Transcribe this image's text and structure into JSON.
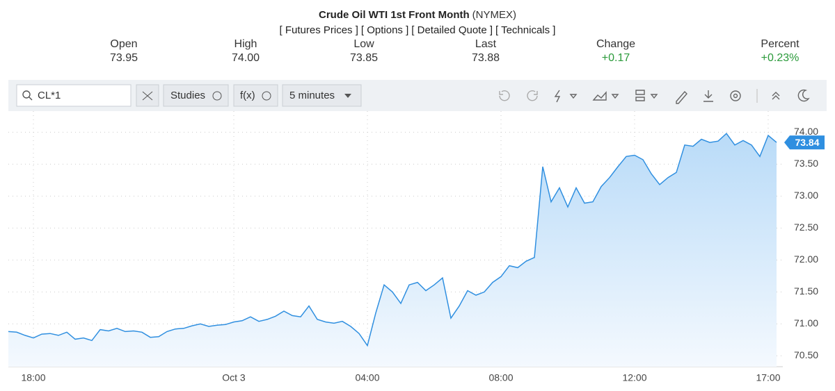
{
  "header": {
    "title": "Crude Oil WTI 1st Front Month",
    "exchange": "(NYMEX)",
    "links": [
      "[ Futures Prices ]",
      "[ Options ]",
      "[ Detailed Quote ]",
      "[ Technicals ]"
    ],
    "stats": [
      {
        "label": "Open",
        "value": "73.95"
      },
      {
        "label": "High",
        "value": "74.00"
      },
      {
        "label": "Low",
        "value": "73.85"
      },
      {
        "label": "Last",
        "value": "73.88"
      },
      {
        "label": "Change",
        "value": "+0.17"
      },
      {
        "label": "Percent",
        "value": "+0.23%"
      }
    ]
  },
  "toolbar": {
    "symbol": "CL*1",
    "studies": "Studies",
    "fx": "f(x)",
    "interval": "5 minutes"
  },
  "chart_data": {
    "type": "line",
    "categories": [
      null,
      null,
      null,
      "18:00",
      null,
      null,
      null,
      null,
      null,
      null,
      null,
      null,
      null,
      null,
      null,
      null,
      null,
      null,
      null,
      null,
      null,
      null,
      null,
      null,
      null,
      null,
      null,
      "Oct 3",
      null,
      null,
      null,
      null,
      null,
      null,
      null,
      null,
      null,
      null,
      null,
      null,
      null,
      null,
      null,
      "04:00",
      null,
      null,
      null,
      null,
      null,
      null,
      null,
      null,
      null,
      null,
      null,
      null,
      null,
      null,
      null,
      "08:00",
      null,
      null,
      null,
      null,
      null,
      null,
      null,
      null,
      null,
      null,
      null,
      null,
      null,
      null,
      null,
      "12:00",
      null,
      null,
      null,
      null,
      null,
      null,
      null,
      null,
      null,
      null,
      null,
      null,
      null,
      null,
      null,
      "17:00",
      null
    ],
    "series": [
      {
        "name": "CL*1",
        "color": "#2f8fe0",
        "values": [
          70.88,
          70.87,
          70.82,
          70.78,
          70.84,
          70.85,
          70.82,
          70.87,
          70.76,
          70.78,
          70.74,
          70.91,
          70.89,
          70.93,
          70.88,
          70.89,
          70.87,
          70.79,
          70.8,
          70.88,
          70.92,
          70.93,
          70.97,
          71.0,
          70.96,
          70.98,
          70.99,
          71.03,
          71.05,
          71.11,
          71.04,
          71.07,
          71.12,
          71.2,
          71.13,
          71.11,
          71.28,
          71.07,
          71.03,
          71.01,
          71.04,
          70.96,
          70.85,
          70.66,
          71.17,
          71.61,
          71.5,
          71.32,
          71.61,
          71.65,
          71.52,
          71.61,
          71.72,
          71.09,
          71.28,
          71.52,
          71.45,
          71.5,
          71.65,
          71.74,
          71.91,
          71.88,
          71.98,
          72.04,
          73.46,
          72.91,
          73.13,
          72.83,
          73.13,
          72.89,
          72.91,
          73.15,
          73.29,
          73.46,
          73.62,
          73.64,
          73.57,
          73.35,
          73.18,
          73.29,
          73.37,
          73.8,
          73.78,
          73.89,
          73.84,
          73.86,
          73.98,
          73.8,
          73.87,
          73.8,
          73.62,
          73.95,
          73.84
        ]
      }
    ],
    "ylim": [
      70.33,
      74.33
    ],
    "yticks": [
      {
        "value": 70.5,
        "label": "70.50"
      },
      {
        "value": 71,
        "label": "71.00"
      },
      {
        "value": 71.5,
        "label": "71.50"
      },
      {
        "value": 72,
        "label": "72.00"
      },
      {
        "value": 72.5,
        "label": "72.50"
      },
      {
        "value": 73,
        "label": "73.00"
      },
      {
        "value": 73.5,
        "label": "73.50"
      },
      {
        "value": 74,
        "label": "74.00"
      }
    ],
    "grid": true
  }
}
